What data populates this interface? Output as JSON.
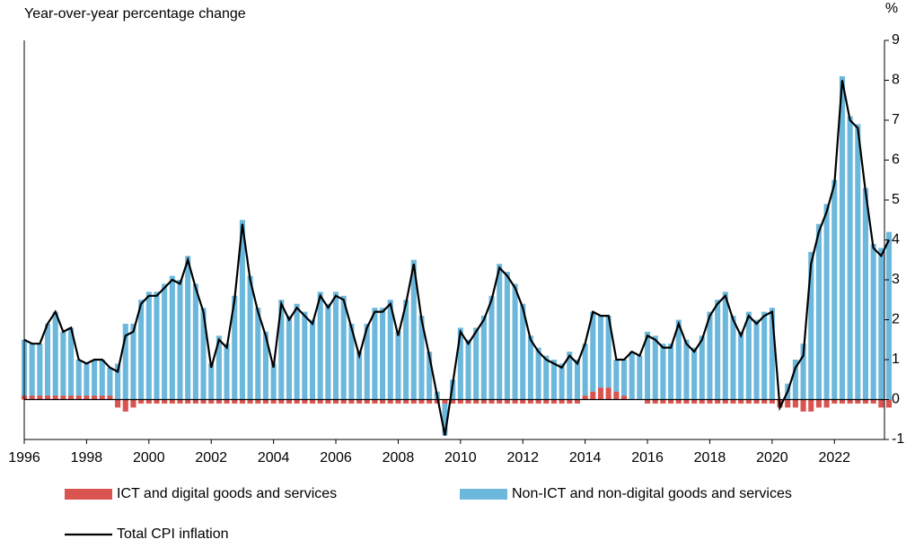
{
  "chart_data": {
    "type": "bar-line",
    "title": "Year-over-year percentage change",
    "y_unit": "%",
    "x": [
      1996,
      1996.25,
      1996.5,
      1996.75,
      1997,
      1997.25,
      1997.5,
      1997.75,
      1998,
      1998.25,
      1998.5,
      1998.75,
      1999,
      1999.25,
      1999.5,
      1999.75,
      2000,
      2000.25,
      2000.5,
      2000.75,
      2001,
      2001.25,
      2001.5,
      2001.75,
      2002,
      2002.25,
      2002.5,
      2002.75,
      2003,
      2003.25,
      2003.5,
      2003.75,
      2004,
      2004.25,
      2004.5,
      2004.75,
      2005,
      2005.25,
      2005.5,
      2005.75,
      2006,
      2006.25,
      2006.5,
      2006.75,
      2007,
      2007.25,
      2007.5,
      2007.75,
      2008,
      2008.25,
      2008.5,
      2008.75,
      2009,
      2009.25,
      2009.5,
      2009.75,
      2010,
      2010.25,
      2010.5,
      2010.75,
      2011,
      2011.25,
      2011.5,
      2011.75,
      2012,
      2012.25,
      2012.5,
      2012.75,
      2013,
      2013.25,
      2013.5,
      2013.75,
      2014,
      2014.25,
      2014.5,
      2014.75,
      2015,
      2015.25,
      2015.5,
      2015.75,
      2016,
      2016.25,
      2016.5,
      2016.75,
      2017,
      2017.25,
      2017.5,
      2017.75,
      2018,
      2018.25,
      2018.5,
      2018.75,
      2019,
      2019.25,
      2019.5,
      2019.75,
      2020,
      2020.25,
      2020.5,
      2020.75,
      2021,
      2021.25,
      2021.5,
      2021.75,
      2022,
      2022.25,
      2022.5,
      2022.75,
      2023,
      2023.25,
      2023.5,
      2023.75
    ],
    "series": [
      {
        "name": "ICT and digital goods and services",
        "kind": "bar",
        "color": "#d9534f",
        "values": [
          0.1,
          0.1,
          0.1,
          0.1,
          0.1,
          0.1,
          0.1,
          0.1,
          0.1,
          0.1,
          0.1,
          0.1,
          -0.2,
          -0.3,
          -0.2,
          -0.1,
          -0.1,
          -0.1,
          -0.1,
          -0.1,
          -0.1,
          -0.1,
          -0.1,
          -0.1,
          -0.1,
          -0.1,
          -0.1,
          -0.1,
          -0.1,
          -0.1,
          -0.1,
          -0.1,
          -0.1,
          -0.1,
          -0.1,
          -0.1,
          -0.1,
          -0.1,
          -0.1,
          -0.1,
          -0.1,
          -0.1,
          -0.1,
          -0.1,
          -0.1,
          -0.1,
          -0.1,
          -0.1,
          -0.1,
          -0.1,
          -0.1,
          -0.1,
          -0.1,
          -0.1,
          -0.1,
          -0.1,
          -0.1,
          -0.1,
          -0.1,
          -0.1,
          -0.1,
          -0.1,
          -0.1,
          -0.1,
          -0.1,
          -0.1,
          -0.1,
          -0.1,
          -0.1,
          -0.1,
          -0.1,
          -0.1,
          0.1,
          0.2,
          0.3,
          0.3,
          0.2,
          0.1,
          0.0,
          0.0,
          -0.1,
          -0.1,
          -0.1,
          -0.1,
          -0.1,
          -0.1,
          -0.1,
          -0.1,
          -0.1,
          -0.1,
          -0.1,
          -0.1,
          -0.1,
          -0.1,
          -0.1,
          -0.1,
          -0.1,
          -0.2,
          -0.2,
          -0.2,
          -0.3,
          -0.3,
          -0.2,
          -0.2,
          -0.1,
          -0.1,
          -0.1,
          -0.1,
          -0.1,
          -0.1,
          -0.2,
          -0.2
        ]
      },
      {
        "name": "Non-ICT and non-digital goods and services",
        "kind": "bar",
        "color": "#6bb8dc",
        "values": [
          1.4,
          1.3,
          1.3,
          1.8,
          2.1,
          1.6,
          1.7,
          0.9,
          0.8,
          0.9,
          0.9,
          0.7,
          0.9,
          1.9,
          1.9,
          2.5,
          2.7,
          2.7,
          2.9,
          3.1,
          3.0,
          3.6,
          2.9,
          2.3,
          0.9,
          1.6,
          1.4,
          2.6,
          4.5,
          3.1,
          2.3,
          1.7,
          0.9,
          2.5,
          2.1,
          2.4,
          2.2,
          2.0,
          2.7,
          2.4,
          2.7,
          2.6,
          1.9,
          1.2,
          1.9,
          2.3,
          2.3,
          2.5,
          1.7,
          2.5,
          3.5,
          2.1,
          1.2,
          0.2,
          -0.8,
          0.5,
          1.8,
          1.5,
          1.8,
          2.1,
          2.6,
          3.4,
          3.2,
          2.9,
          2.4,
          1.6,
          1.3,
          1.1,
          1.0,
          0.9,
          1.2,
          1.0,
          1.3,
          2.0,
          1.8,
          1.8,
          0.8,
          0.9,
          1.2,
          1.1,
          1.7,
          1.6,
          1.4,
          1.4,
          2.0,
          1.5,
          1.3,
          1.6,
          2.2,
          2.5,
          2.7,
          2.1,
          1.7,
          2.2,
          2.0,
          2.2,
          2.3,
          0.0,
          0.4,
          1.0,
          1.4,
          3.7,
          4.4,
          4.9,
          5.5,
          8.1,
          7.1,
          6.9,
          5.3,
          3.9,
          3.8,
          4.2
        ]
      },
      {
        "name": "Total CPI inflation",
        "kind": "line",
        "color": "#000000",
        "values": [
          1.5,
          1.4,
          1.4,
          1.9,
          2.2,
          1.7,
          1.8,
          1.0,
          0.9,
          1.0,
          1.0,
          0.8,
          0.7,
          1.6,
          1.7,
          2.4,
          2.6,
          2.6,
          2.8,
          3.0,
          2.9,
          3.5,
          2.8,
          2.2,
          0.8,
          1.5,
          1.3,
          2.5,
          4.4,
          3.0,
          2.2,
          1.6,
          0.8,
          2.4,
          2.0,
          2.3,
          2.1,
          1.9,
          2.6,
          2.3,
          2.6,
          2.5,
          1.8,
          1.1,
          1.8,
          2.2,
          2.2,
          2.4,
          1.6,
          2.4,
          3.4,
          2.0,
          1.1,
          0.1,
          -0.9,
          0.4,
          1.7,
          1.4,
          1.7,
          2.0,
          2.5,
          3.3,
          3.1,
          2.8,
          2.3,
          1.5,
          1.2,
          1.0,
          0.9,
          0.8,
          1.1,
          0.9,
          1.4,
          2.2,
          2.1,
          2.1,
          1.0,
          1.0,
          1.2,
          1.1,
          1.6,
          1.5,
          1.3,
          1.3,
          1.9,
          1.4,
          1.2,
          1.5,
          2.1,
          2.4,
          2.6,
          2.0,
          1.6,
          2.1,
          1.9,
          2.1,
          2.2,
          -0.2,
          0.2,
          0.8,
          1.1,
          3.4,
          4.2,
          4.7,
          5.4,
          8.0,
          7.0,
          6.8,
          5.2,
          3.8,
          3.6,
          4.0
        ]
      }
    ],
    "xlim": [
      1996,
      2023.75
    ],
    "xticks": [
      1996,
      1998,
      2000,
      2002,
      2004,
      2006,
      2008,
      2010,
      2012,
      2014,
      2016,
      2018,
      2020,
      2022
    ],
    "ylim": [
      -1,
      9
    ],
    "yticks": [
      -1,
      0,
      1,
      2,
      3,
      4,
      5,
      6,
      7,
      8,
      9
    ]
  }
}
